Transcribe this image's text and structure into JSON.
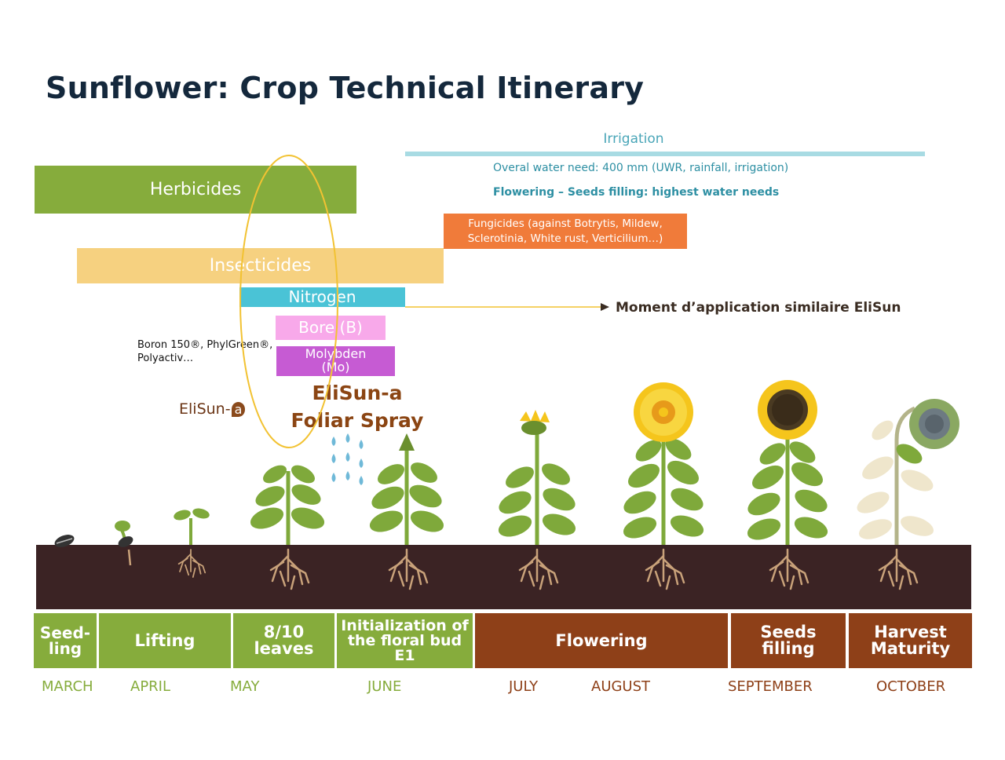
{
  "title": "Sunflower: Crop Technical Itinerary",
  "irrigation": {
    "label": "Irrigation",
    "water_need": "Overal water need: 400 mm (UWR, rainfall, irrigation)",
    "peak_need": "Flowering – Seeds filling: highest water needs"
  },
  "treatments": {
    "herbicides": "Herbicides",
    "fungicides_line1": "Fungicides (against Botrytis, Mildew,",
    "fungicides_line2": "Sclerotinia, White rust, Verticilium…)",
    "insecticides": "Insecticides",
    "nitrogen": "Nitrogen",
    "bore": "Bore (B)",
    "molybden_line1": "Molybden",
    "molybden_line2": "(Mo)"
  },
  "annotations": {
    "moment": "Moment d’application similaire EliSun",
    "boron_line1": "Boron 150®, PhylGreen®,",
    "boron_line2": "Polyactiv…",
    "brand_text": "EliSun-",
    "brand_badge": "a",
    "foliar_line1": "EliSun-a",
    "foliar_line2": "Foliar Spray"
  },
  "stages": [
    {
      "line1": "Seed-",
      "line2": "ling"
    },
    {
      "line1": "Lifting",
      "line2": ""
    },
    {
      "line1": "8/10",
      "line2": "leaves"
    },
    {
      "line1": "Initialization of",
      "line2": "the floral bud",
      "line3": "E1"
    },
    {
      "line1": "Flowering",
      "line2": ""
    },
    {
      "line1": "Seeds",
      "line2": "filling"
    },
    {
      "line1": "Harvest",
      "line2": "Maturity"
    }
  ],
  "months": [
    "MARCH",
    "APRIL",
    "MAY",
    "JUNE",
    "JULY",
    "AUGUST",
    "SEPTEMBER",
    "OCTOBER"
  ],
  "colors": {
    "title": "#14283c",
    "herbicides": "#86ac3c",
    "insecticides": "#f6d180",
    "nitrogen": "#4ac3d6",
    "bore": "#f8a9ea",
    "molybden": "#c65bd3",
    "fungicides": "#f07b3a",
    "irrigation": "#a8dbe3",
    "soil": "#3b2324",
    "stage_green": "#86ac3c",
    "stage_brown": "#8e4018",
    "leaf": "#7fa93b",
    "petal": "#f5c51c",
    "ellipse": "#f2c232"
  },
  "icons": [
    "sunflower-seed-icon",
    "sprout-icon",
    "seedling-icon",
    "young-plant-icon",
    "budding-plant-icon",
    "bud-opening-icon",
    "blooming-sunflower-icon",
    "seed-filling-sunflower-icon",
    "mature-sunflower-icon",
    "water-drops-icon",
    "root-icon"
  ]
}
